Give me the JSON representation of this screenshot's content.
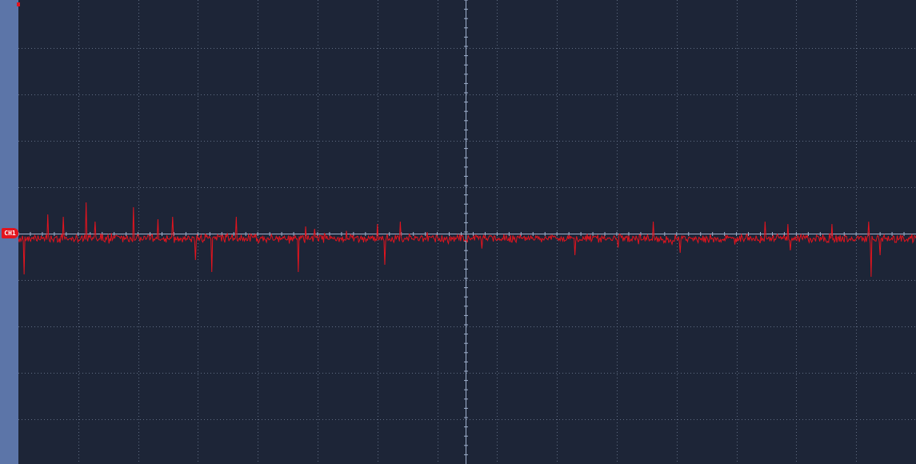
{
  "channel": {
    "label": "CH1",
    "color": "#e3141e"
  },
  "display": {
    "background": "#1d2537",
    "grid_color": "#7d8aa3",
    "axis_color": "#9fb0cc",
    "sidebar_color": "#5c75a8",
    "h_divisions": 15,
    "v_divisions": 10,
    "grid_style": "dotted"
  },
  "waveform": {
    "type": "noise-with-spikes",
    "baseline": 0,
    "spikes_up": [
      [
        0.033,
        0.5
      ],
      [
        0.05,
        0.45
      ],
      [
        0.075,
        0.75
      ],
      [
        0.085,
        0.35
      ],
      [
        0.128,
        0.65
      ],
      [
        0.155,
        0.4
      ],
      [
        0.172,
        0.45
      ],
      [
        0.243,
        0.45
      ],
      [
        0.32,
        0.25
      ],
      [
        0.33,
        0.2
      ],
      [
        0.4,
        0.3
      ],
      [
        0.4,
        0.3
      ],
      [
        0.425,
        0.35
      ],
      [
        0.707,
        0.35
      ],
      [
        0.832,
        0.35
      ],
      [
        0.857,
        0.3
      ],
      [
        0.906,
        0.3
      ],
      [
        0.947,
        0.35
      ]
    ],
    "spikes_down": [
      [
        0.006,
        -0.75
      ],
      [
        0.197,
        -0.45
      ],
      [
        0.215,
        -0.7
      ],
      [
        0.312,
        -0.7
      ],
      [
        0.408,
        -0.55
      ],
      [
        0.62,
        -0.35
      ],
      [
        0.737,
        -0.3
      ],
      [
        0.86,
        -0.25
      ],
      [
        0.95,
        -0.8
      ],
      [
        0.96,
        -0.35
      ]
    ]
  }
}
